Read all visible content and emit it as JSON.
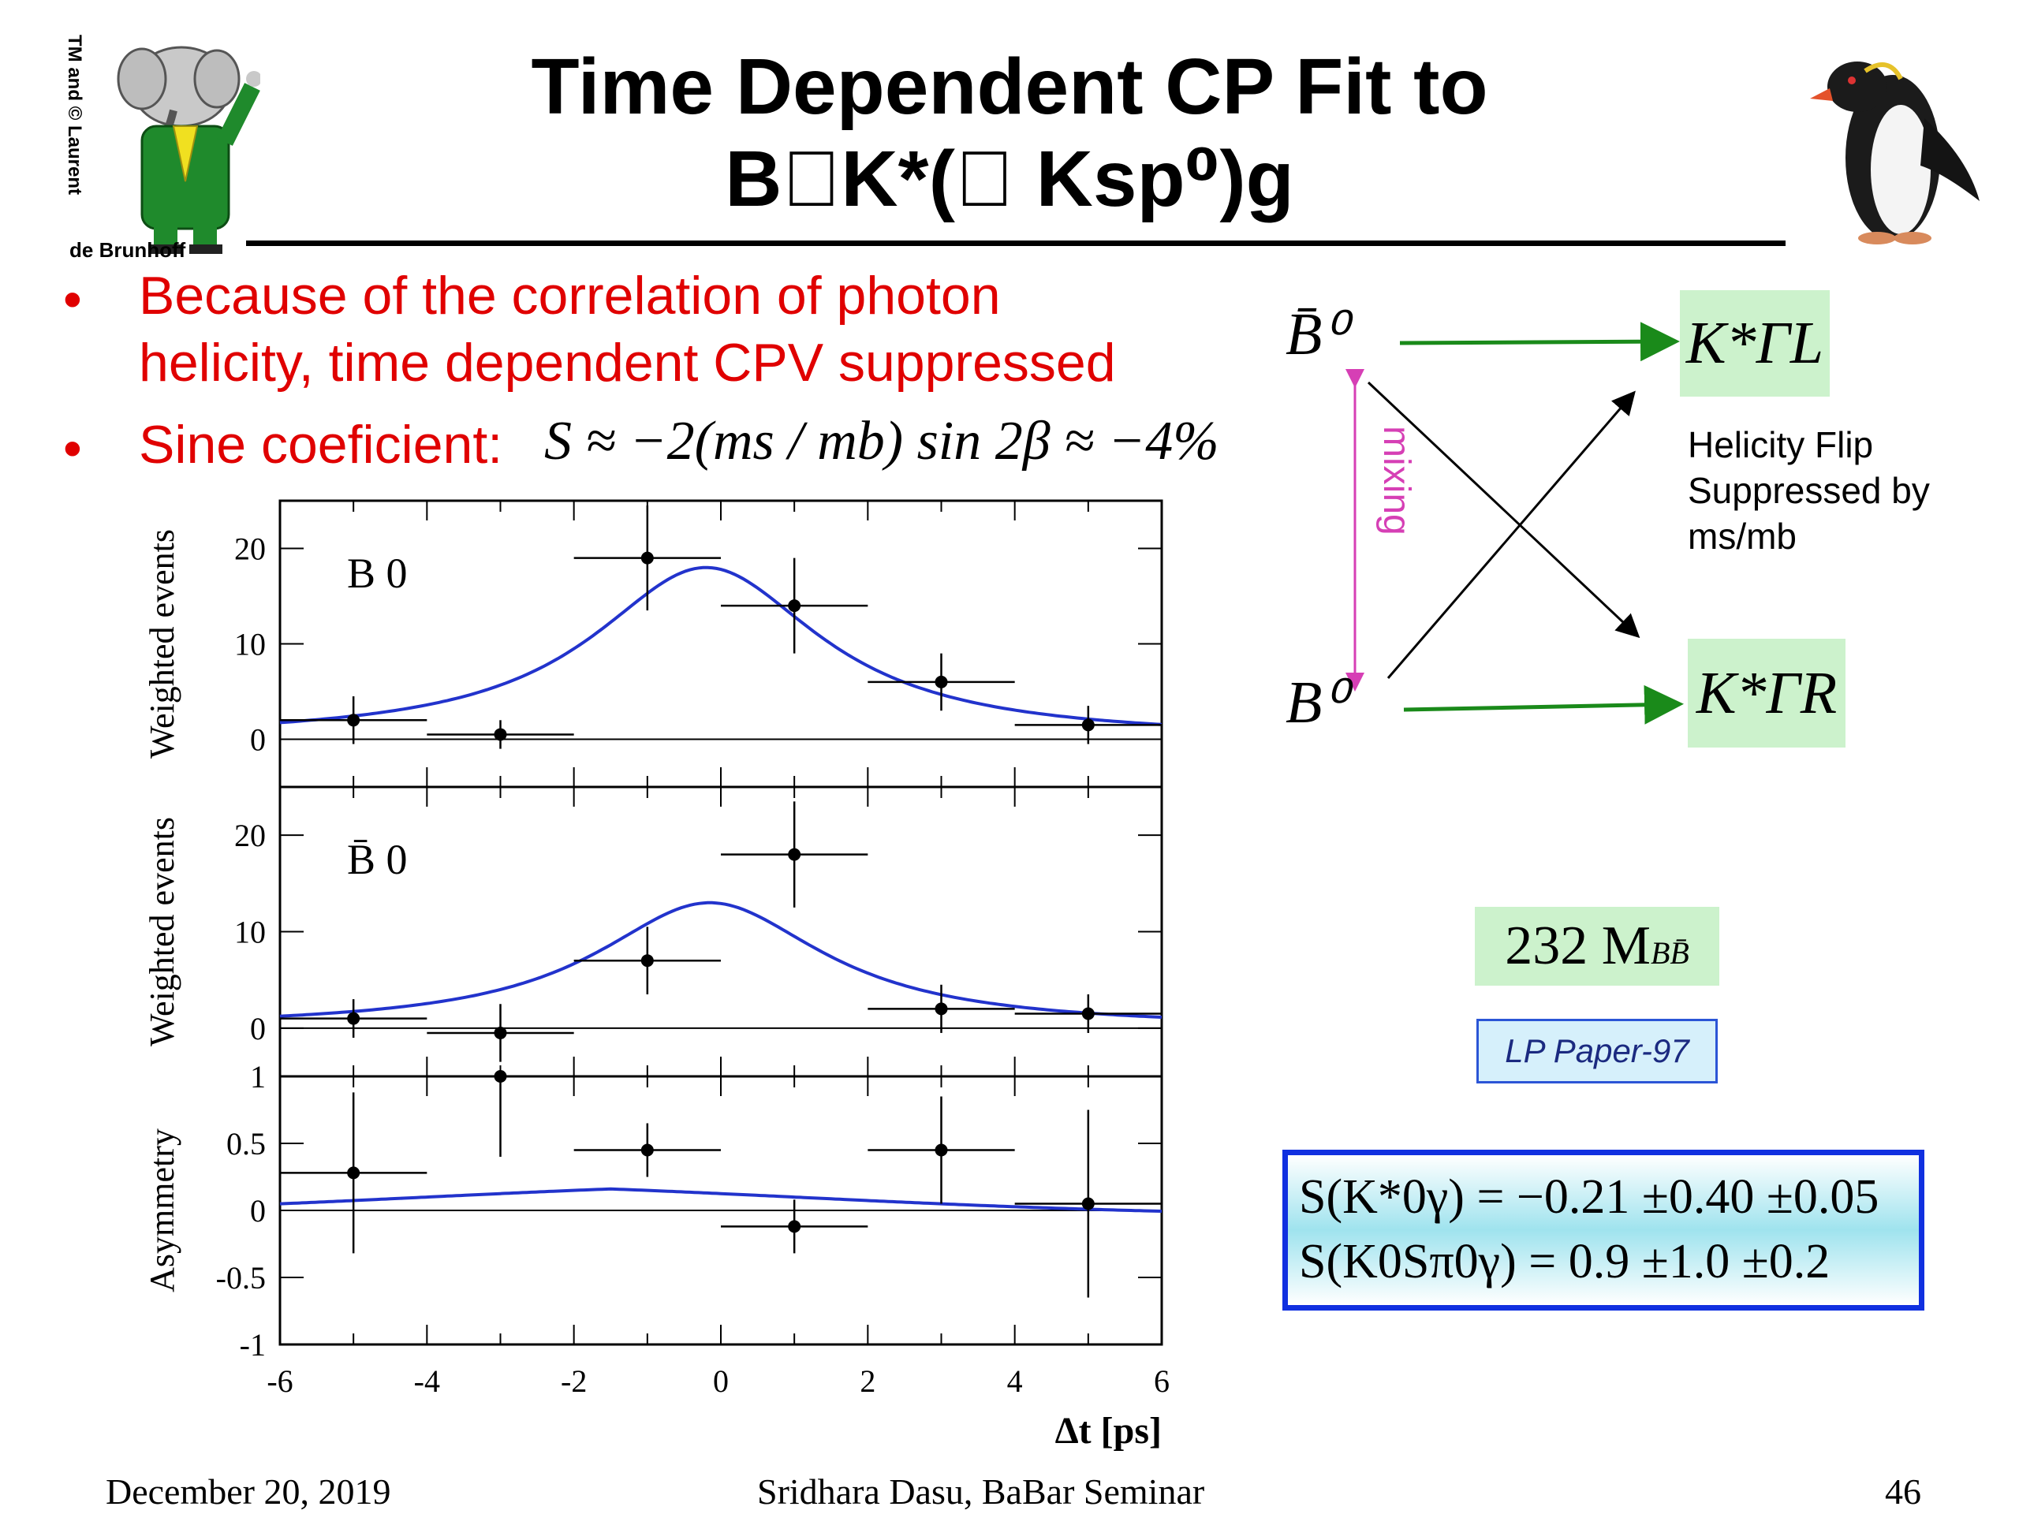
{
  "title": {
    "line1": "Time Dependent CP Fit to",
    "line2": "B\u0000K*(\u0000 Ksp⁰)g"
  },
  "bullets": [
    {
      "marker": "•",
      "text1": "Because of the correlation of photon",
      "text2": "helicity, time dependent CPV suppressed"
    },
    {
      "marker": "•",
      "label": "Sine coeficient:",
      "formula": "S ≈ −2(ms / mb) sin 2β ≈ −4%"
    }
  ],
  "logos": {
    "left_caption_vertical": "TM and © Laurent",
    "left_caption_bottom": "de Brunhoff"
  },
  "diagram": {
    "bbar": "B̄⁰",
    "b0": "B⁰",
    "mixing": "mixing",
    "kstar_L": "K*ΓL",
    "kstar_R": "K*ΓR",
    "helicity_note": [
      "Helicity Flip",
      "Suppressed by",
      "ms/mb"
    ],
    "colors": {
      "green_arrow": "#1a8a1a",
      "mixing": "#d63fb5",
      "black_arrow": "#000000"
    }
  },
  "luminosity": "232 M",
  "luminosity_sub": "BB̄",
  "paper": "LP Paper-97",
  "results": {
    "line1": "S(K*0γ) = −0.21 ±0.40 ±0.05",
    "line2": "S(K0Sπ0γ) = 0.9 ±1.0 ±0.2"
  },
  "chart_data": [
    {
      "type": "scatter",
      "panel": "B0",
      "label": "B 0",
      "ylabel": "Weighted events",
      "ylim": [
        -5,
        25
      ],
      "yticks": [
        0,
        10,
        20
      ],
      "x": [
        -5,
        -3,
        -1,
        1,
        3,
        5
      ],
      "y": [
        2,
        0.5,
        19,
        14,
        6,
        1.5
      ],
      "yerr": [
        2.5,
        1.5,
        5.5,
        5,
        3,
        2
      ],
      "xerr": 1,
      "curve": {
        "peak_x": -0.2,
        "peak_y": 18,
        "color": "#2233cc"
      }
    },
    {
      "type": "scatter",
      "panel": "B0bar",
      "label": "B̄ 0",
      "ylabel": "Weighted events",
      "ylim": [
        -5,
        25
      ],
      "yticks": [
        0,
        10,
        20
      ],
      "x": [
        -5,
        -3,
        -1,
        1,
        3,
        5
      ],
      "y": [
        1,
        -0.5,
        7,
        18,
        2,
        1.5
      ],
      "yerr": [
        2,
        3,
        3.5,
        5.5,
        2.5,
        2
      ],
      "xerr": 1,
      "curve": {
        "peak_x": -0.15,
        "peak_y": 13,
        "color": "#2233cc"
      }
    },
    {
      "type": "scatter",
      "panel": "asymmetry",
      "ylabel": "Asymmetry",
      "xlabel": "Δt [ps]",
      "ylim": [
        -1,
        1
      ],
      "yticks": [
        -1,
        -0.5,
        0,
        0.5,
        1
      ],
      "ytick_labels": [
        "-1",
        "-0.5",
        "0",
        "0.5",
        "1"
      ],
      "xlim": [
        -6,
        6
      ],
      "xticks": [
        -6,
        -4,
        -2,
        0,
        2,
        4,
        6
      ],
      "x": [
        -5,
        -3,
        -1,
        1,
        3,
        5
      ],
      "y": [
        0.28,
        1.0,
        0.45,
        -0.12,
        0.45,
        0.05
      ],
      "yerr": [
        0.6,
        0.6,
        0.2,
        0.2,
        0.4,
        0.7
      ],
      "xerr": 1,
      "curve": {
        "amplitude": 0.16,
        "color": "#2233cc"
      }
    }
  ],
  "footer": {
    "date": "December 20, 2019",
    "author": "Sridhara Dasu, BaBar Seminar",
    "page": "46"
  }
}
